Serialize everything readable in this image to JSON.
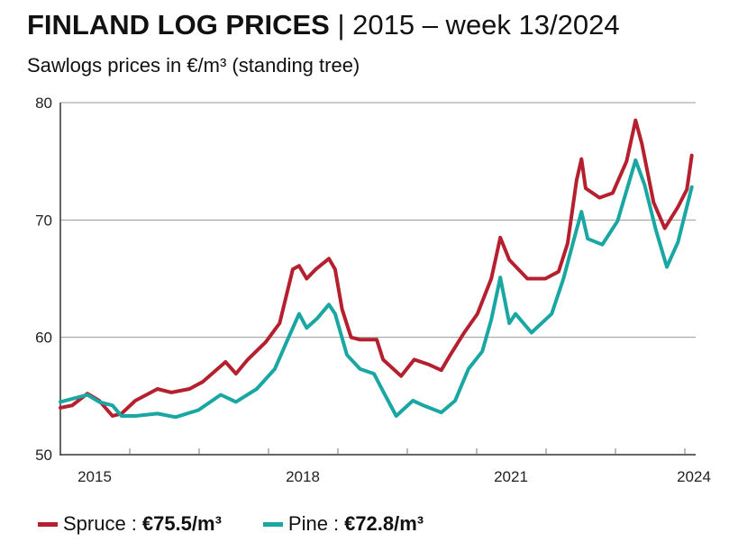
{
  "chart_data": {
    "type": "line",
    "title": "FINLAND LOG PRICES",
    "title_suffix": " | 2015 – week 13/2024",
    "subtitle": "Sawlogs prices in €/m³ (standing tree)",
    "ylim": [
      50,
      80
    ],
    "yticks": [
      50,
      60,
      70,
      80
    ],
    "xlim": [
      2015,
      2024.6
    ],
    "xtick_labels": [
      "2015",
      "2018",
      "2021",
      "2024"
    ],
    "grid": "horizontal",
    "legend_position": "bottom",
    "series": [
      {
        "name": "Spruce",
        "color": "#b5202e",
        "latest_label": "€75.5/m³",
        "x": [
          2015.0,
          2015.17,
          2015.39,
          2015.56,
          2015.75,
          2015.88,
          2016.08,
          2016.4,
          2016.6,
          2016.86,
          2017.05,
          2017.38,
          2017.53,
          2017.7,
          2017.96,
          2018.16,
          2018.35,
          2018.44,
          2018.55,
          2018.68,
          2018.87,
          2018.96,
          2019.06,
          2019.19,
          2019.32,
          2019.56,
          2019.65,
          2019.91,
          2020.1,
          2020.3,
          2020.49,
          2020.62,
          2020.82,
          2021.01,
          2021.21,
          2021.34,
          2021.47,
          2021.73,
          2021.99,
          2022.18,
          2022.31,
          2022.44,
          2022.51,
          2022.57,
          2022.77,
          2022.96,
          2023.16,
          2023.29,
          2023.38,
          2023.55,
          2023.71,
          2023.9,
          2024.03,
          2024.1
        ],
        "y": [
          54.0,
          54.2,
          55.2,
          54.6,
          53.3,
          53.5,
          54.6,
          55.6,
          55.3,
          55.6,
          56.2,
          57.9,
          56.9,
          58.1,
          59.6,
          61.2,
          65.8,
          66.1,
          65.0,
          65.8,
          66.7,
          65.8,
          62.4,
          60.0,
          59.8,
          59.8,
          58.1,
          56.7,
          58.1,
          57.7,
          57.2,
          58.5,
          60.4,
          62.0,
          65.0,
          68.5,
          66.6,
          65.0,
          65.0,
          65.6,
          68.0,
          73.4,
          75.2,
          72.7,
          71.9,
          72.3,
          75.0,
          78.5,
          76.5,
          71.5,
          69.3,
          71.1,
          72.6,
          75.5
        ]
      },
      {
        "name": "Pine",
        "color": "#1aa6a2",
        "latest_label": "€72.8/m³",
        "x": [
          2015.0,
          2015.39,
          2015.56,
          2015.75,
          2015.88,
          2016.08,
          2016.4,
          2016.66,
          2016.99,
          2017.31,
          2017.53,
          2017.83,
          2018.09,
          2018.29,
          2018.44,
          2018.55,
          2018.7,
          2018.87,
          2018.96,
          2019.13,
          2019.32,
          2019.52,
          2019.65,
          2019.84,
          2020.08,
          2020.23,
          2020.49,
          2020.69,
          2020.88,
          2021.08,
          2021.21,
          2021.34,
          2021.47,
          2021.56,
          2021.79,
          2022.08,
          2022.25,
          2022.44,
          2022.51,
          2022.6,
          2022.81,
          2023.03,
          2023.29,
          2023.42,
          2023.58,
          2023.74,
          2023.9,
          2024.1
        ],
        "y": [
          54.5,
          55.1,
          54.5,
          54.2,
          53.3,
          53.3,
          53.5,
          53.2,
          53.8,
          55.1,
          54.5,
          55.6,
          57.3,
          60.0,
          62.0,
          60.8,
          61.6,
          62.8,
          62.0,
          58.5,
          57.3,
          56.9,
          55.4,
          53.3,
          54.6,
          54.2,
          53.6,
          54.6,
          57.3,
          58.8,
          61.5,
          65.1,
          61.2,
          62.0,
          60.4,
          62.0,
          65.0,
          69.2,
          70.7,
          68.4,
          67.9,
          69.9,
          75.1,
          73.0,
          69.2,
          66.0,
          68.1,
          72.8
        ]
      }
    ]
  }
}
